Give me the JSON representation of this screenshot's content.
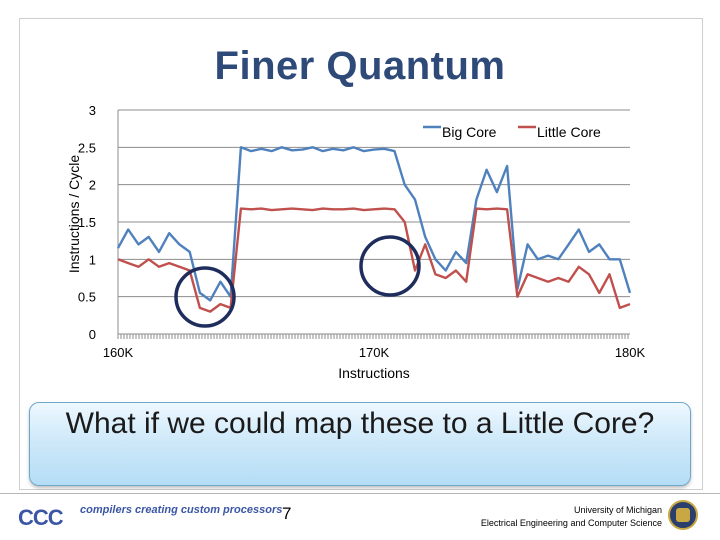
{
  "slide": {
    "title": "Finer Quantum",
    "callout": "What if we could map these to a Little Core?",
    "page_number": "7",
    "footer": {
      "logo_text": "CCC",
      "tagline": "compilers creating custom processors",
      "university_line1": "University of Michigan",
      "university_line2": "Electrical Engineering and Computer Science"
    }
  },
  "colors": {
    "title": "#2e4a79",
    "big_core": "#4f81bd",
    "little_core": "#c0504d",
    "circle": "#1f2d5c"
  },
  "chart_data": {
    "type": "line",
    "ylabel": "Instructions / Cycle",
    "xlabel": "Instructions",
    "ylim": [
      0,
      3
    ],
    "yticks": [
      "0",
      "0.5",
      "1",
      "1.5",
      "2",
      "2.5",
      "3"
    ],
    "xlim": [
      160000,
      180000
    ],
    "xticks": [
      "160K",
      "170K",
      "180K"
    ],
    "grid": true,
    "legend_position": "top-right",
    "x": [
      160000,
      160400,
      160800,
      161200,
      161600,
      162000,
      162400,
      162800,
      163200,
      163600,
      164000,
      164400,
      164800,
      165200,
      165600,
      166000,
      166400,
      166800,
      167200,
      167600,
      168000,
      168400,
      168800,
      169200,
      169600,
      170000,
      170400,
      170800,
      171200,
      171600,
      172000,
      172400,
      172800,
      173200,
      173600,
      174000,
      174400,
      174800,
      175200,
      175600,
      176000,
      176400,
      176800,
      177200,
      177600,
      178000,
      178400,
      178800,
      179200,
      179600,
      180000
    ],
    "series": [
      {
        "name": "Big Core",
        "values": [
          1.15,
          1.4,
          1.2,
          1.3,
          1.1,
          1.35,
          1.2,
          1.1,
          0.55,
          0.45,
          0.7,
          0.5,
          2.5,
          2.45,
          2.48,
          2.45,
          2.5,
          2.46,
          2.47,
          2.5,
          2.45,
          2.48,
          2.46,
          2.5,
          2.45,
          2.47,
          2.48,
          2.45,
          2.0,
          1.8,
          1.3,
          1.0,
          0.85,
          1.1,
          0.95,
          1.8,
          2.2,
          1.9,
          2.25,
          0.6,
          1.2,
          1.0,
          1.05,
          1.0,
          1.2,
          1.4,
          1.1,
          1.2,
          1.0,
          1.0,
          0.55
        ]
      },
      {
        "name": "Little Core",
        "values": [
          1.0,
          0.95,
          0.9,
          1.0,
          0.9,
          0.95,
          0.9,
          0.85,
          0.35,
          0.3,
          0.4,
          0.35,
          1.68,
          1.67,
          1.68,
          1.66,
          1.67,
          1.68,
          1.67,
          1.66,
          1.68,
          1.67,
          1.67,
          1.68,
          1.66,
          1.67,
          1.68,
          1.67,
          1.5,
          0.85,
          1.2,
          0.8,
          0.75,
          0.85,
          0.7,
          1.68,
          1.67,
          1.68,
          1.67,
          0.5,
          0.8,
          0.75,
          0.7,
          0.75,
          0.7,
          0.9,
          0.8,
          0.55,
          0.8,
          0.35,
          0.4
        ]
      }
    ]
  }
}
